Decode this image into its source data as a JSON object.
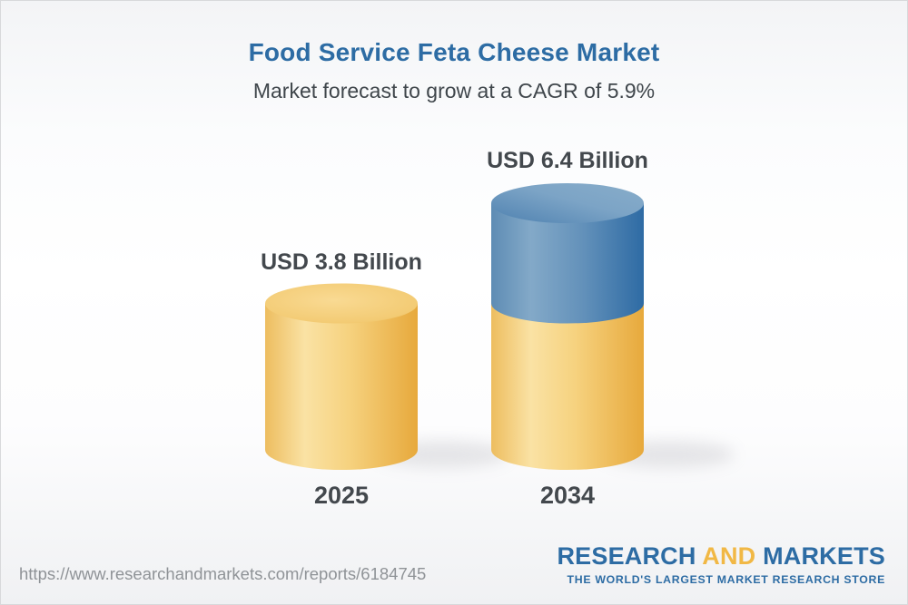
{
  "header": {
    "title": "Food Service Feta Cheese Market",
    "subtitle": "Market forecast to grow at a CAGR of 5.9%"
  },
  "chart_data": {
    "type": "bar",
    "variant": "3d-cylinder",
    "title": "Food Service Feta Cheese Market",
    "unit": "USD Billion",
    "categories": [
      "2025",
      "2034"
    ],
    "values": [
      3.8,
      6.4
    ],
    "bar_labels": [
      "USD 3.8 Billion",
      "USD 6.4 Billion"
    ],
    "cagr_percent": 5.9,
    "ylim": [
      0,
      6.4
    ],
    "grid": false,
    "legend": false,
    "segment_colors": {
      "base_yellow": "#f0c468",
      "growth_blue": "#5b89b4"
    }
  },
  "footer": {
    "url": "https://www.researchandmarkets.com/reports/6184745",
    "logo": {
      "word1": "RESEARCH",
      "word2": "AND",
      "word3": "MARKETS",
      "tagline": "THE WORLD'S LARGEST MARKET RESEARCH STORE"
    }
  },
  "colors": {
    "title_blue": "#2d6ca4",
    "text_dark": "#43484d",
    "url_gray": "#8f9397",
    "logo_blue": "#2d6ca4",
    "logo_gold": "#f1b845"
  }
}
